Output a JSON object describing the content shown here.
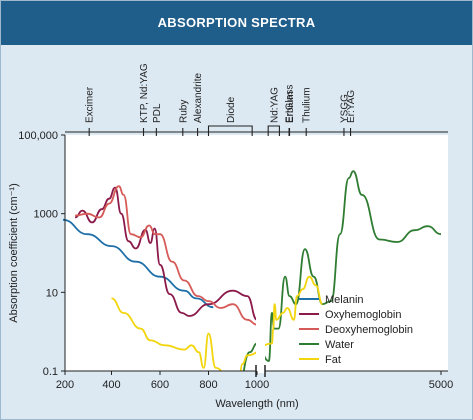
{
  "header": {
    "title": "ABSORPTION SPECTRA"
  },
  "chart_data": {
    "type": "line",
    "title": "ABSORPTION SPECTRA",
    "xlabel": "Wavelength (nm)",
    "ylabel": "Absorption coefficient (cm⁻¹)",
    "yscale": "log",
    "ylim": [
      0.1,
      100000
    ],
    "x_ticks": [
      "200",
      "400",
      "600",
      "800",
      "1000",
      "5000"
    ],
    "y_ticks": [
      "0.1",
      "10",
      "1000",
      "100,000"
    ],
    "x_segments": [
      {
        "range": [
          200,
          1000
        ],
        "ticks": [
          200,
          400,
          600,
          800,
          1000
        ]
      },
      {
        "range": [
          1000,
          5000
        ],
        "ticks": [
          5000
        ]
      }
    ],
    "axis_break": "between 1000 nm and ~1060 nm",
    "legend_position": "right",
    "lasers": [
      {
        "label": "Excimer",
        "wavelength": 308
      },
      {
        "label": "KTP, Nd:YAG",
        "wavelength": 532
      },
      {
        "label": "PDL",
        "wavelength": 585
      },
      {
        "label": "Ruby",
        "wavelength": 694
      },
      {
        "label": "Alexandrite",
        "wavelength": 755
      },
      {
        "label": "Diode",
        "range": [
          800,
          980
        ]
      },
      {
        "label": "Nd:YAG",
        "range": [
          1064,
          1320
        ]
      },
      {
        "label": "Er:Glass",
        "wavelength": 1540
      },
      {
        "label": "Erbium",
        "wavelength": 1550
      },
      {
        "label": "Thulium",
        "wavelength": 1930
      },
      {
        "label": "YSGG",
        "wavelength": 2790
      },
      {
        "label": "Er:YAG",
        "wavelength": 2940
      }
    ],
    "series": [
      {
        "name": "Melanin",
        "color": "#1f6fa8",
        "points": [
          [
            200,
            700
          ],
          [
            300,
            300
          ],
          [
            400,
            150
          ],
          [
            500,
            60
          ],
          [
            600,
            25
          ],
          [
            700,
            11
          ],
          [
            750,
            7
          ],
          [
            820,
            4.2
          ]
        ]
      },
      {
        "name": "Oxyhemoglobin",
        "color": "#8b1a4a",
        "points": [
          [
            250,
            800
          ],
          [
            280,
            1200
          ],
          [
            320,
            600
          ],
          [
            360,
            1300
          ],
          [
            390,
            2400
          ],
          [
            415,
            4600
          ],
          [
            440,
            1000
          ],
          [
            470,
            200
          ],
          [
            500,
            130
          ],
          [
            540,
            390
          ],
          [
            560,
            180
          ],
          [
            578,
            420
          ],
          [
            600,
            50
          ],
          [
            640,
            9
          ],
          [
            690,
            3
          ],
          [
            720,
            2.5
          ],
          [
            800,
            5
          ],
          [
            900,
            11
          ],
          [
            960,
            8
          ],
          [
            1000,
            2
          ]
        ]
      },
      {
        "name": "Deoxyhemoglobin",
        "color": "#d65b58",
        "points": [
          [
            250,
            900
          ],
          [
            300,
            1000
          ],
          [
            350,
            800
          ],
          [
            390,
            1800
          ],
          [
            430,
            5000
          ],
          [
            450,
            3000
          ],
          [
            480,
            300
          ],
          [
            520,
            250
          ],
          [
            555,
            500
          ],
          [
            580,
            300
          ],
          [
            600,
            300
          ],
          [
            650,
            60
          ],
          [
            700,
            20
          ],
          [
            757,
            8
          ],
          [
            800,
            6
          ],
          [
            850,
            4
          ],
          [
            900,
            5
          ],
          [
            960,
            2
          ],
          [
            1000,
            1.5
          ]
        ]
      },
      {
        "name": "Water",
        "color": "#2f7d32",
        "points": [
          [
            920,
            0.03
          ],
          [
            970,
            0.3
          ],
          [
            1000,
            0.5
          ],
          [
            1080,
            0.18
          ],
          [
            1150,
            3
          ],
          [
            1200,
            1.2
          ],
          [
            1300,
            1.2
          ],
          [
            1450,
            25
          ],
          [
            1550,
            8
          ],
          [
            1700,
            5
          ],
          [
            1900,
            125
          ],
          [
            2100,
            25
          ],
          [
            2300,
            5
          ],
          [
            2500,
            6
          ],
          [
            2700,
            300
          ],
          [
            2900,
            8000
          ],
          [
            3000,
            12000
          ],
          [
            3200,
            3000
          ],
          [
            3600,
            220
          ],
          [
            4000,
            190
          ],
          [
            4400,
            380
          ],
          [
            4700,
            480
          ],
          [
            5000,
            300
          ]
        ]
      },
      {
        "name": "Fat",
        "color": "#f2d50c",
        "points": [
          [
            400,
            7
          ],
          [
            450,
            3
          ],
          [
            520,
            1.2
          ],
          [
            560,
            0.6
          ],
          [
            620,
            0.45
          ],
          [
            700,
            0.35
          ],
          [
            730,
            0.45
          ],
          [
            760,
            0.3
          ],
          [
            780,
            0.12
          ],
          [
            800,
            0.9
          ],
          [
            830,
            0.12
          ],
          [
            920,
            0.02
          ],
          [
            940,
            0.15
          ],
          [
            960,
            0.25
          ],
          [
            1150,
            0.5
          ],
          [
            1180,
            1.2
          ],
          [
            1210,
            5
          ],
          [
            1250,
            2
          ],
          [
            1400,
            3
          ],
          [
            1500,
            4
          ],
          [
            1650,
            2
          ],
          [
            1720,
            8
          ],
          [
            1850,
            12
          ],
          [
            2000,
            25
          ],
          [
            2150,
            15
          ],
          [
            2300,
            5
          ]
        ]
      }
    ]
  }
}
